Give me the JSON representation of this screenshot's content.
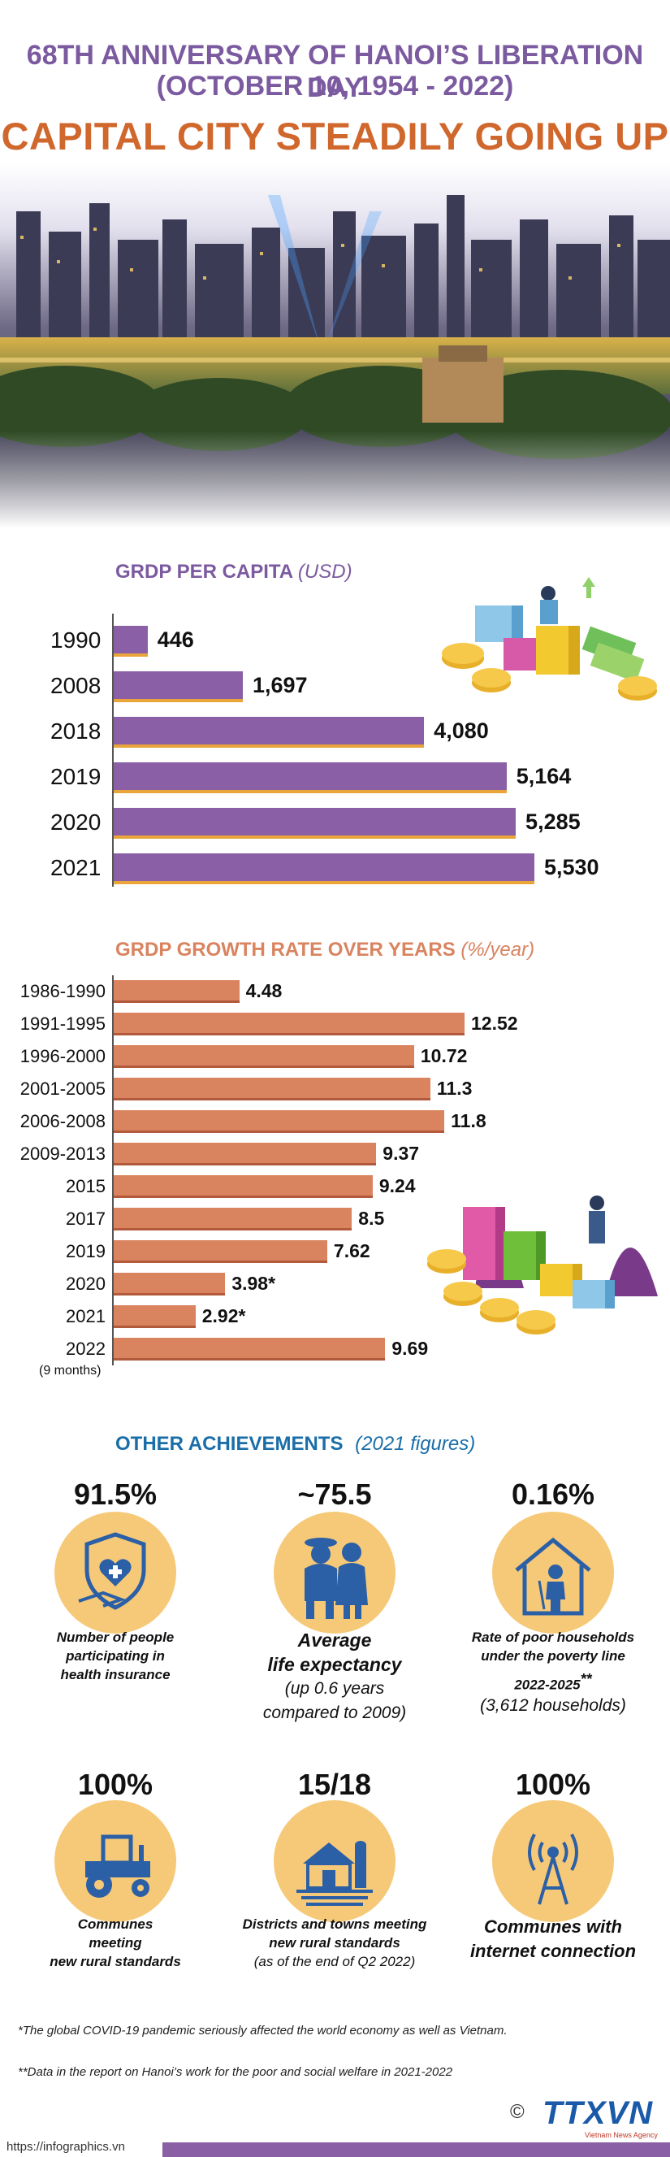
{
  "header": {
    "line1": "68TH ANNIVERSARY OF HANOI’S LIBERATION DAY",
    "line2": "(OCTOBER 10, 1954 - 2022)",
    "title": "CAPITAL CITY STEADILY GOING UP"
  },
  "colors": {
    "purple": "#8a5fa6",
    "orange": "#d9835f",
    "title_orange": "#d0672c",
    "blue_heading": "#1a6ea8",
    "circle_fill": "#f6c978",
    "icon_blue": "#2b5fa6"
  },
  "chart_data": [
    {
      "type": "bar",
      "orientation": "horizontal",
      "title": "GRDP PER CAPITA",
      "unit": "(USD)",
      "categories": [
        "1990",
        "2008",
        "2018",
        "2019",
        "2020",
        "2021"
      ],
      "values": [
        446,
        1697,
        4080,
        5164,
        5285,
        5530
      ],
      "value_labels": [
        "446",
        "1,697",
        "4,080",
        "5,164",
        "5,285",
        "5,530"
      ],
      "xlim": [
        0,
        5530
      ]
    },
    {
      "type": "bar",
      "orientation": "horizontal",
      "title": "GRDP GROWTH RATE OVER YEARS",
      "unit": "(%/year)",
      "categories": [
        "1986-1990",
        "1991-1995",
        "1996-2000",
        "2001-2005",
        "2006-2008",
        "2009-2013",
        "2015",
        "2017",
        "2019",
        "2020",
        "2021",
        "2022"
      ],
      "category_note": "(9 months)",
      "values": [
        4.48,
        12.52,
        10.72,
        11.3,
        11.8,
        9.37,
        9.24,
        8.5,
        7.62,
        3.98,
        2.92,
        9.69
      ],
      "value_labels": [
        "4.48",
        "12.52",
        "10.72",
        "11.3",
        "11.8",
        "9.37",
        "9.24",
        "8.5",
        "7.62",
        "3.98*",
        "2.92*",
        "9.69"
      ],
      "xlim": [
        0,
        12.52
      ]
    }
  ],
  "achievements": {
    "title": "OTHER ACHIEVEMENTS",
    "subtitle": "(2021 figures)",
    "items": [
      {
        "value": "91.5%",
        "icon": "health-shield-icon",
        "text": [
          "Number of people",
          "participating in",
          "health insurance"
        ]
      },
      {
        "value": "~75.5",
        "icon": "elderly-couple-icon",
        "text_big": [
          "Average",
          "life expectancy"
        ],
        "text_sub": [
          "(up 0.6 years",
          "compared to 2009)"
        ]
      },
      {
        "value": "0.16%",
        "icon": "poor-household-icon",
        "text": [
          "Rate of poor households",
          "under the poverty line"
        ],
        "text_extra": "2022-2025",
        "text_extra_mark": "**",
        "text_sub": "(3,612 households)"
      },
      {
        "value": "100%",
        "icon": "tractor-icon",
        "text": [
          "Communes",
          "meeting",
          "new rural standards"
        ]
      },
      {
        "value": "15/18",
        "icon": "farm-house-icon",
        "text": [
          "Districts and towns meeting",
          "new rural standards",
          "(as of the end of Q2 2022)"
        ]
      },
      {
        "value": "100%",
        "icon": "antenna-icon",
        "text_big": [
          "Communes with",
          "internet connection"
        ]
      }
    ]
  },
  "footnotes": {
    "note1": "*The global COVID-19 pandemic seriously affected the world economy as well as Vietnam.",
    "note2": "**Data in the report on Hanoi’s work for the poor and social welfare in 2021-2022"
  },
  "footer": {
    "url": "https://infographics.vn",
    "copyright": "©",
    "logo_text": "TTXVN",
    "agency": "Vietnam News Agency"
  }
}
